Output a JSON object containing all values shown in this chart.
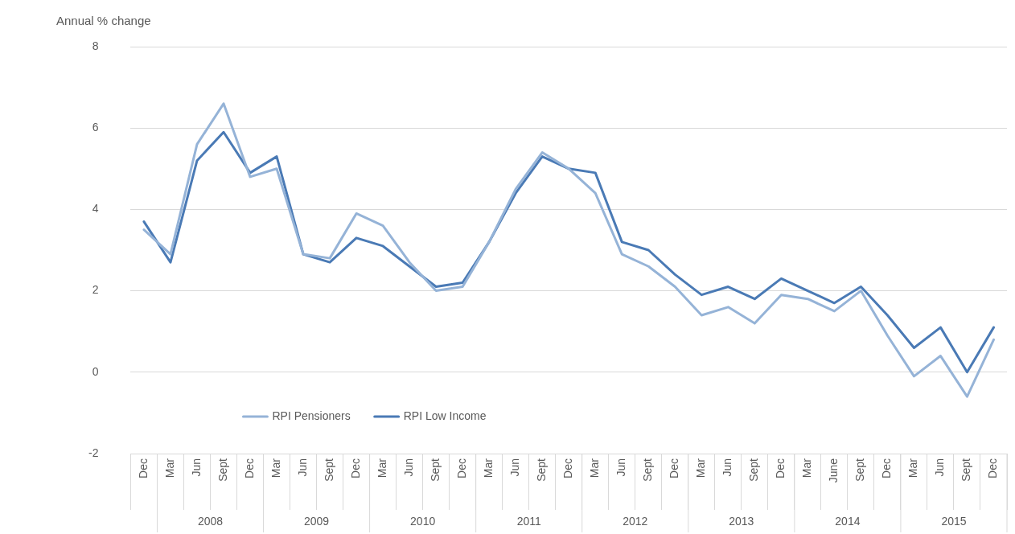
{
  "chart_data": {
    "type": "line",
    "ylabel": "Annual % change",
    "categories": [
      "Dec",
      "Mar",
      "Jun",
      "Sept",
      "Dec",
      "Mar",
      "Jun",
      "Sept",
      "Dec",
      "Mar",
      "Jun",
      "Sept",
      "Dec",
      "Mar",
      "Jun",
      "Sept",
      "Dec",
      "Mar",
      "Jun",
      "Sept",
      "Dec",
      "Mar",
      "Jun",
      "Sept",
      "Dec",
      "Mar",
      "June",
      "Sept",
      "Dec",
      "Mar",
      "Jun",
      "Sept",
      "Dec"
    ],
    "annotations": [
      "2008",
      "2009",
      "2010",
      "2011",
      "2012",
      "2013",
      "2014",
      "2015"
    ],
    "series": [
      {
        "name": "RPI Pensioners",
        "color": "#95b3d7",
        "values": [
          3.5,
          2.9,
          5.6,
          6.6,
          4.8,
          5.0,
          2.9,
          2.8,
          3.9,
          3.6,
          2.7,
          2.0,
          2.1,
          3.2,
          4.5,
          5.4,
          5.0,
          4.4,
          2.9,
          2.6,
          2.1,
          1.4,
          1.6,
          1.2,
          1.9,
          1.8,
          1.5,
          2.0,
          0.9,
          -0.1,
          0.4,
          -0.6,
          0.8
        ]
      },
      {
        "name": "RPI Low Income",
        "color": "#4a7ab5",
        "values": [
          3.7,
          2.7,
          5.2,
          5.9,
          4.9,
          5.3,
          2.9,
          2.7,
          3.3,
          3.1,
          2.6,
          2.1,
          2.2,
          3.2,
          4.4,
          5.3,
          5.0,
          4.9,
          3.2,
          3.0,
          2.4,
          1.9,
          2.1,
          1.8,
          2.3,
          2.0,
          1.7,
          2.1,
          1.4,
          0.6,
          1.1,
          0.0,
          1.1
        ]
      }
    ],
    "ylim": [
      -2,
      8
    ],
    "yticks": [
      -2,
      0,
      2,
      4,
      6,
      8
    ],
    "grid": "y",
    "legend": "bottom left",
    "marker": "none",
    "line_style": "solid"
  }
}
